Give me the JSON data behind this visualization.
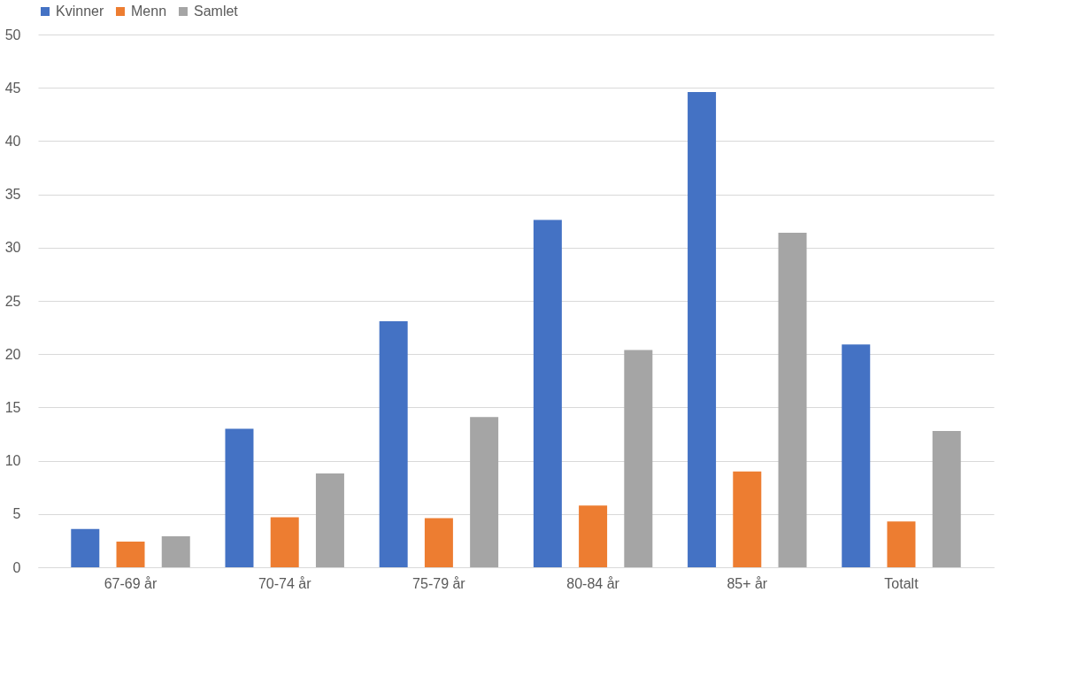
{
  "chart_data": {
    "type": "bar",
    "categories": [
      "67-69 år",
      "70-74 år",
      "75-79 år",
      "80-84 år",
      "85+ år",
      "Totalt"
    ],
    "series": [
      {
        "name": "Kvinner",
        "color": "#4472c4",
        "values": [
          3.6,
          13.0,
          23.1,
          32.6,
          44.6,
          20.9
        ]
      },
      {
        "name": "Menn",
        "color": "#ed7d31",
        "values": [
          2.4,
          4.7,
          4.6,
          5.8,
          9.0,
          4.3
        ]
      },
      {
        "name": "Samlet",
        "color": "#a5a5a5",
        "values": [
          2.9,
          8.8,
          14.1,
          20.4,
          31.4,
          12.8
        ]
      }
    ],
    "ylim": [
      0,
      50
    ],
    "yticks": [
      0,
      5,
      10,
      15,
      20,
      25,
      30,
      35,
      40,
      45,
      50
    ],
    "grid": "y",
    "legend": "top"
  }
}
